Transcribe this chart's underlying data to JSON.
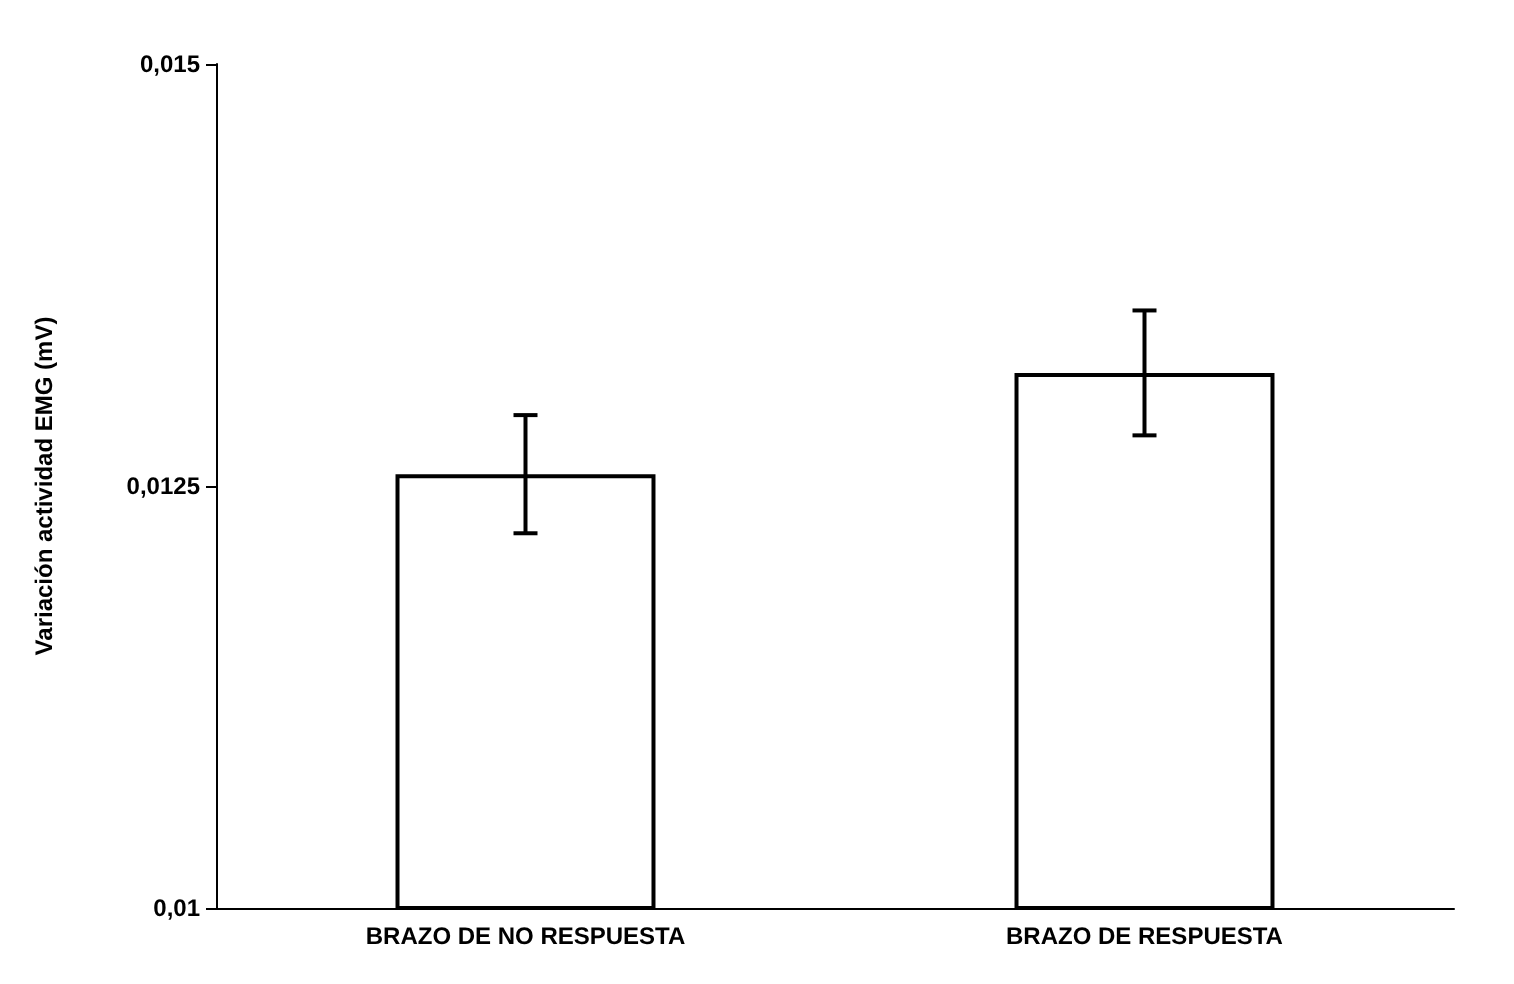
{
  "chart_data": {
    "type": "bar",
    "ylabel": "Variación actividad EMG (mV)",
    "categories": [
      "BRAZO DE NO RESPUESTA",
      "BRAZO DE RESPUESTA"
    ],
    "values": [
      0.01257,
      0.01317
    ],
    "color": "#ffffff",
    "errors": [
      0.00035,
      0.00037
    ],
    "ylim": [
      0.01,
      0.015
    ],
    "yticks": [
      {
        "value": 0.01,
        "label": "0,01"
      },
      {
        "value": 0.0125,
        "label": "0,0125"
      },
      {
        "value": 0.015,
        "label": "0,015"
      }
    ],
    "grid": false
  }
}
